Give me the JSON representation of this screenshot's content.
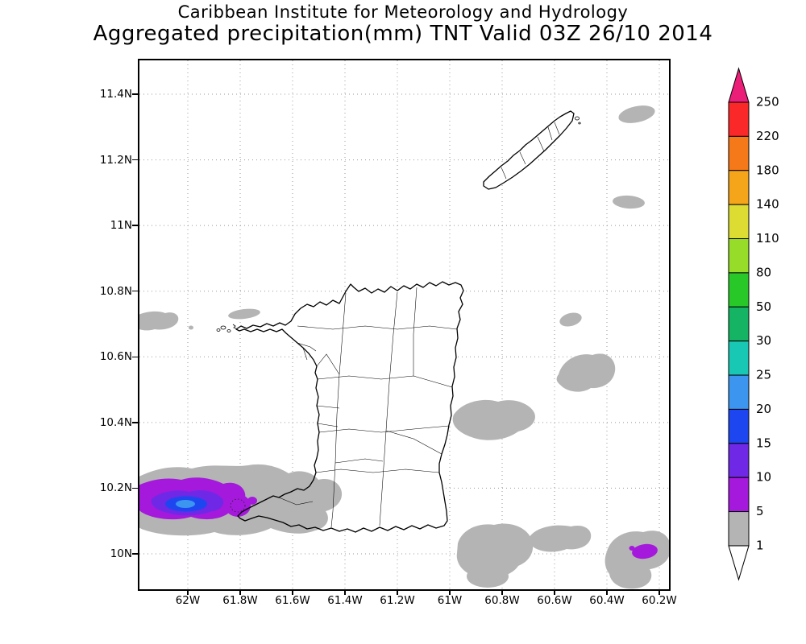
{
  "header": {
    "line1": "Caribbean Institute for Meteorology and Hydrology",
    "line2": "Aggregated precipitation(mm) TNT Valid 03Z 26/10 2014"
  },
  "chart_data": {
    "type": "heatmap",
    "subtype": "geographic shaded-contour precipitation map (GrADS style)",
    "title": "Aggregated precipitation(mm) TNT Valid 03Z 26/10 2014",
    "institution": "Caribbean Institute for Meteorology and Hydrology",
    "region": "Trinidad and Tobago",
    "units": "mm",
    "grid": "dotted",
    "x_axis": {
      "range": [
        -62.1846,
        -60.1631
      ],
      "ticks": [
        {
          "label": "62W",
          "value": -62.0
        },
        {
          "label": "61.8W",
          "value": -61.8
        },
        {
          "label": "61.6W",
          "value": -61.6
        },
        {
          "label": "61.4W",
          "value": -61.4
        },
        {
          "label": "61.2W",
          "value": -61.2
        },
        {
          "label": "61W",
          "value": -61.0
        },
        {
          "label": "60.8W",
          "value": -60.8
        },
        {
          "label": "60.6W",
          "value": -60.6
        },
        {
          "label": "60.4W",
          "value": -60.4
        },
        {
          "label": "60.2W",
          "value": -60.2
        }
      ]
    },
    "y_axis": {
      "range": [
        9.8921,
        11.503
      ],
      "ticks": [
        {
          "label": "11.4N",
          "value": 11.4
        },
        {
          "label": "11.2N",
          "value": 11.2
        },
        {
          "label": "11N",
          "value": 11.0
        },
        {
          "label": "10.8N",
          "value": 10.8
        },
        {
          "label": "10.6N",
          "value": 10.6
        },
        {
          "label": "10.4N",
          "value": 10.4
        },
        {
          "label": "10.2N",
          "value": 10.2
        },
        {
          "label": "10N",
          "value": 10.0
        }
      ]
    },
    "colorbar": {
      "position": "right",
      "boundary_labels_top_to_bottom": [
        "250",
        "220",
        "180",
        "140",
        "110",
        "80",
        "50",
        "30",
        "25",
        "20",
        "15",
        "10",
        "5",
        "1"
      ],
      "colors_top_to_bottom": [
        "#eb1e78",
        "#fa2828",
        "#f57819",
        "#f5a519",
        "#dcdc32",
        "#96dc28",
        "#28c828",
        "#14b464",
        "#19c8b4",
        "#3c96f0",
        "#1e46f0",
        "#6e28e6",
        "#a519dc",
        "#b4b4b4",
        "#ffffff"
      ],
      "band_meaning_top_to_bottom": [
        ">250 mm",
        "220-250 mm",
        "180-220 mm",
        "140-180 mm",
        "110-140 mm",
        "80-110 mm",
        "50-80 mm",
        "30-50 mm",
        "25-30 mm",
        "20-25 mm",
        "15-20 mm",
        "10-15 mm",
        "5-10 mm",
        "1-5 mm",
        "<1 mm"
      ]
    },
    "features": [
      {
        "name": "main precipitation cell",
        "center_lon_lat": [
          -62.0,
          10.15
        ],
        "peak_band_mm": "20-25",
        "description": "Concentric shaded bands (1,5,10,15,20 mm) southwest of Trinidad over the Gulf of Paria / Cedros peninsula, cyan-blue core"
      },
      {
        "name": "secondary purple spot",
        "center_lon_lat": [
          -60.26,
          10.01
        ],
        "peak_band_mm": "5-10",
        "description": "Small 5-10 mm patch inside a 1-5 mm area southeast of Trinidad"
      },
      {
        "name": "light precipitation (1-5 mm) areas",
        "centers_lon_lat": [
          [
            -62.14,
            10.71
          ],
          [
            -61.79,
            10.73
          ],
          [
            -60.83,
            10.41
          ],
          [
            -60.48,
            10.56
          ],
          [
            -60.54,
            10.71
          ],
          [
            -60.83,
            10.02
          ],
          [
            -60.58,
            10.05
          ],
          [
            -60.28,
            10.0
          ],
          [
            -60.29,
            11.34
          ],
          [
            -60.32,
            11.07
          ]
        ]
      }
    ]
  }
}
